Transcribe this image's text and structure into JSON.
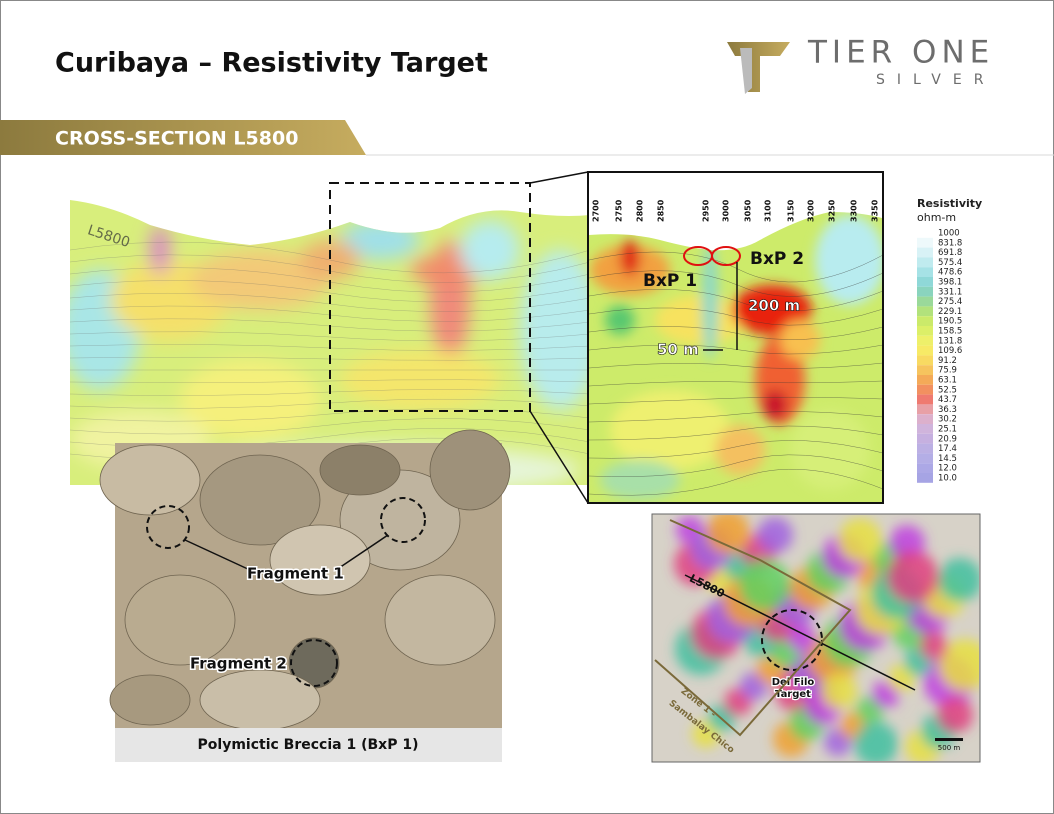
{
  "header": {
    "title": "Curibaya – Resistivity Target",
    "logo_name": "TIER ONE",
    "logo_sub": "SILVER"
  },
  "section_banner": "CROSS-SECTION L5800",
  "cross_section": {
    "line_label": "L5800",
    "stations": [
      "2700",
      "2750",
      "2800",
      "2850",
      "2950",
      "3000",
      "3050",
      "3100",
      "3150",
      "3200",
      "3250",
      "3300",
      "3350"
    ],
    "annotations": {
      "bxp1": "BxP 1",
      "bxp2": "BxP 2",
      "depth": "200 m",
      "width": "50 m"
    }
  },
  "legend": {
    "title": "Resistivity",
    "unit": "ohm-m",
    "values": [
      "1000",
      "831.8",
      "691.8",
      "575.4",
      "478.6",
      "398.1",
      "331.1",
      "275.4",
      "229.1",
      "190.5",
      "158.5",
      "131.8",
      "109.6",
      "91.2",
      "75.9",
      "63.1",
      "52.5",
      "43.7",
      "36.3",
      "30.2",
      "25.1",
      "20.9",
      "17.4",
      "14.5",
      "12.0",
      "10.0"
    ]
  },
  "photo": {
    "labels": [
      "Fragment 1",
      "Fragment 2"
    ],
    "caption": "Polymictic Breccia 1 (BxP 1)"
  },
  "map": {
    "line_label": "L5800",
    "target": [
      "Del Filo",
      "Target"
    ],
    "zone": [
      "Zone 1 -",
      "Sambalay Chico"
    ],
    "scale": "500 m"
  }
}
